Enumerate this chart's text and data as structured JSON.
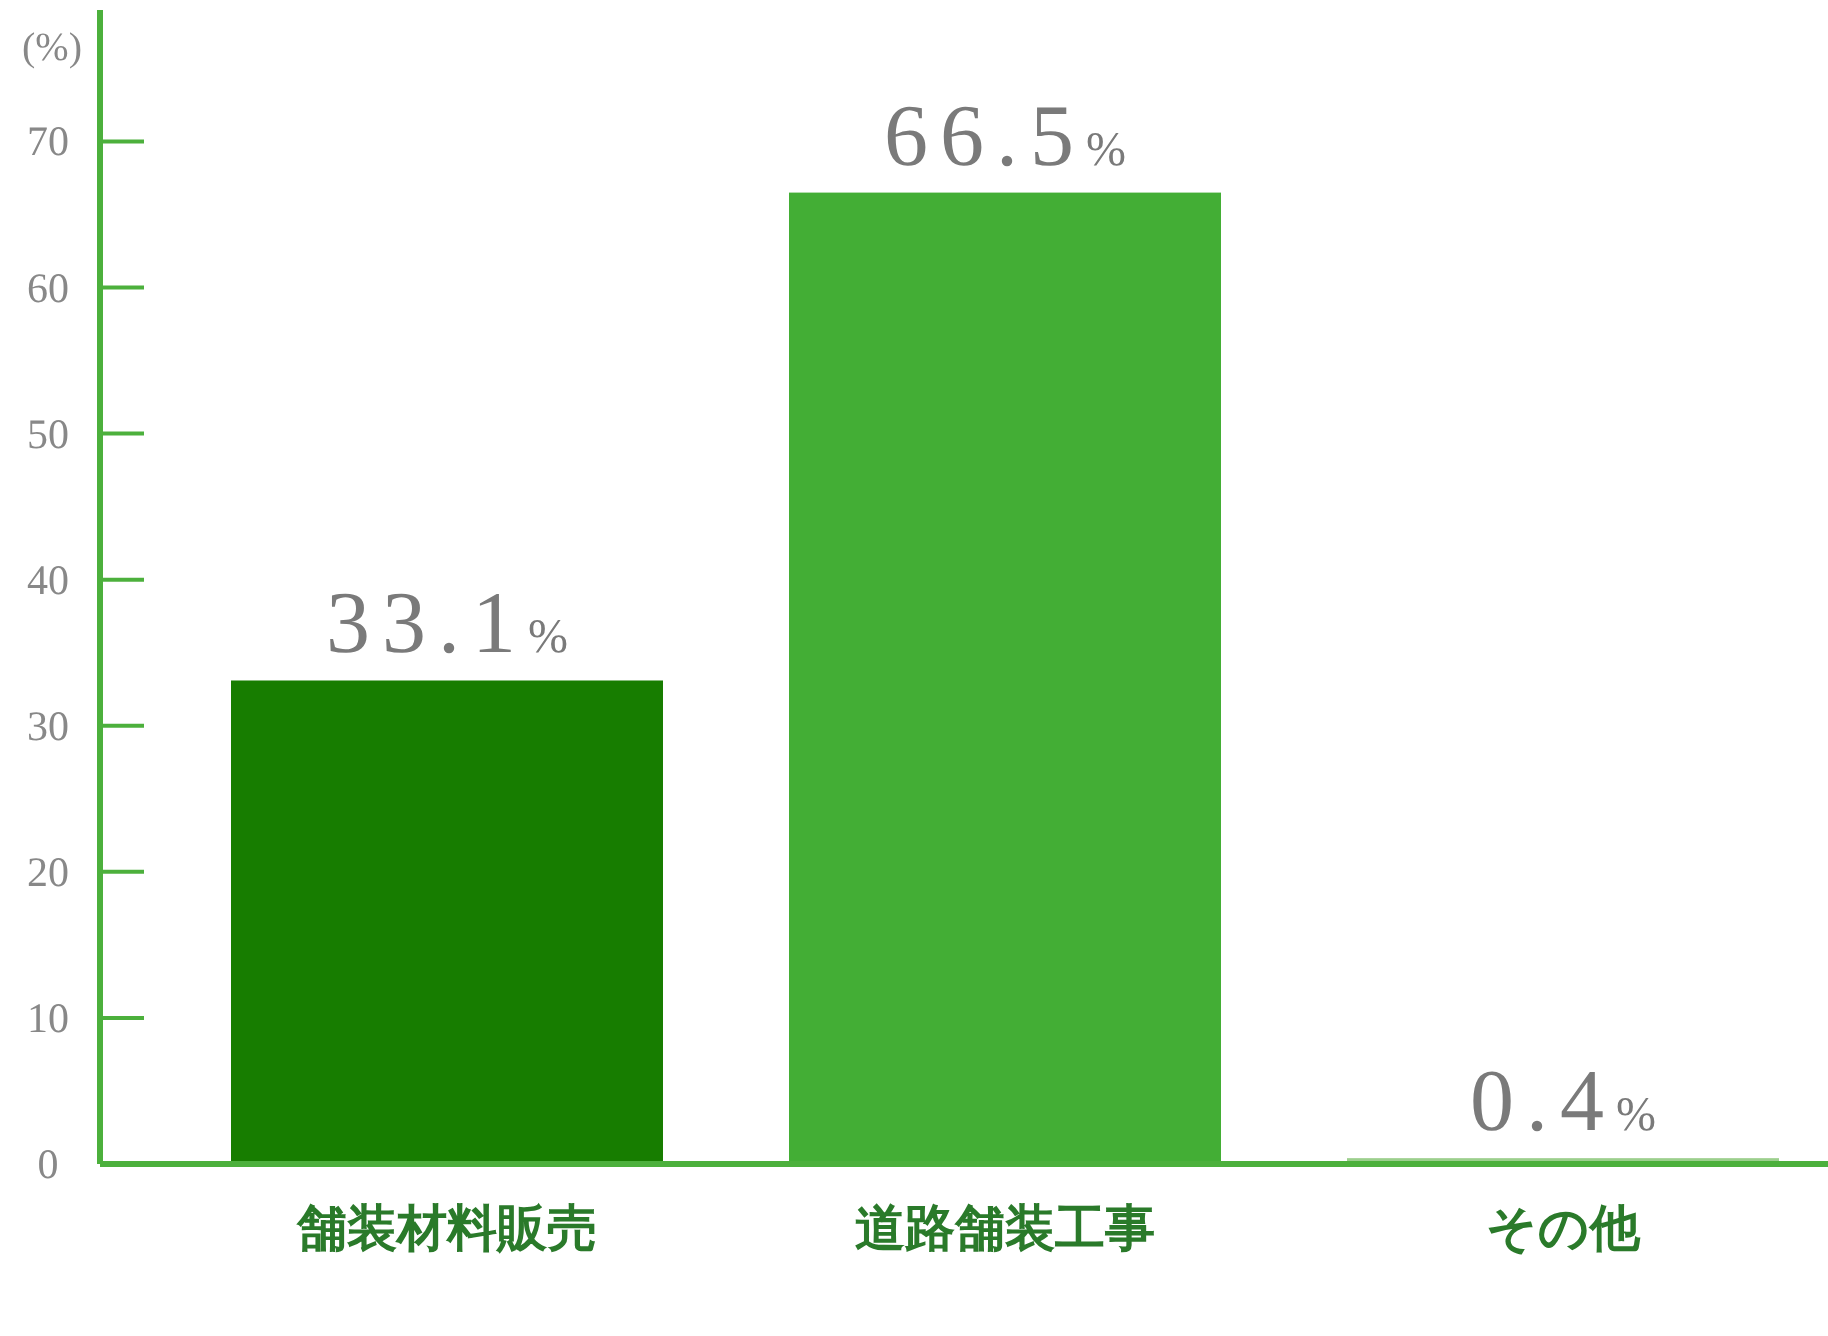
{
  "chart_data": {
    "type": "bar",
    "ylabel": "(%)",
    "categories": [
      "舗装材料販売",
      "道路舗装工事",
      "その他"
    ],
    "values": [
      33.1,
      66.5,
      0.4
    ],
    "colors": [
      "#177d00",
      "#43ae35",
      "#9ccf8d"
    ],
    "value_labels": [
      "33.1%",
      "66.5%",
      "0.4%"
    ],
    "ylim": [
      0,
      79
    ],
    "yticks": [
      0,
      10,
      20,
      30,
      40,
      50,
      60,
      70
    ]
  }
}
